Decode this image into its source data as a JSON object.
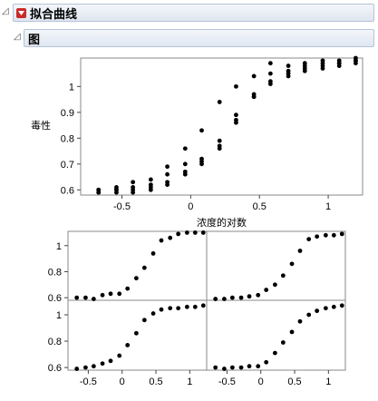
{
  "outline": {
    "title": "拟合曲线",
    "subtitle": "图"
  },
  "chart_data": [
    {
      "type": "scatter",
      "title": "",
      "xlabel": "浓度的对数",
      "ylabel": "毒性",
      "xlim": [
        -0.8,
        1.25
      ],
      "ylim": [
        0.58,
        1.11
      ],
      "grid": false,
      "xticks": [
        -0.5,
        0,
        0.5,
        1
      ],
      "yticks": [
        0.6,
        0.7,
        0.8,
        0.9,
        1
      ],
      "xtick_labels": [
        "-0.5",
        "0",
        "0.5",
        "1"
      ],
      "ytick_labels": [
        "0.6",
        "0.7",
        "0.8",
        "0.9",
        "1"
      ],
      "points": [
        [
          -0.67,
          0.6
        ],
        [
          -0.67,
          0.59
        ],
        [
          -0.67,
          0.6
        ],
        [
          -0.67,
          0.59
        ],
        [
          -0.54,
          0.6
        ],
        [
          -0.54,
          0.61
        ],
        [
          -0.54,
          0.59
        ],
        [
          -0.54,
          0.6
        ],
        [
          -0.42,
          0.63
        ],
        [
          -0.42,
          0.61
        ],
        [
          -0.42,
          0.6
        ],
        [
          -0.42,
          0.59
        ],
        [
          -0.29,
          0.64
        ],
        [
          -0.29,
          0.62
        ],
        [
          -0.29,
          0.61
        ],
        [
          -0.29,
          0.6
        ],
        [
          -0.17,
          0.69
        ],
        [
          -0.17,
          0.66
        ],
        [
          -0.17,
          0.63
        ],
        [
          -0.17,
          0.62
        ],
        [
          -0.04,
          0.76
        ],
        [
          -0.04,
          0.7
        ],
        [
          -0.04,
          0.67
        ],
        [
          -0.04,
          0.66
        ],
        [
          0.08,
          0.83
        ],
        [
          0.08,
          0.72
        ],
        [
          0.08,
          0.71
        ],
        [
          0.08,
          0.7
        ],
        [
          0.21,
          0.94
        ],
        [
          0.21,
          0.79
        ],
        [
          0.21,
          0.77
        ],
        [
          0.21,
          0.76
        ],
        [
          0.33,
          1.0
        ],
        [
          0.33,
          0.89
        ],
        [
          0.33,
          0.87
        ],
        [
          0.33,
          0.86
        ],
        [
          0.46,
          1.04
        ],
        [
          0.46,
          0.97
        ],
        [
          0.46,
          0.96
        ],
        [
          0.46,
          0.96
        ],
        [
          0.58,
          1.09
        ],
        [
          0.58,
          1.05
        ],
        [
          0.58,
          1.02
        ],
        [
          0.58,
          1.01
        ],
        [
          0.71,
          1.08
        ],
        [
          0.71,
          1.06
        ],
        [
          0.71,
          1.05
        ],
        [
          0.71,
          1.04
        ],
        [
          0.83,
          1.09
        ],
        [
          0.83,
          1.08
        ],
        [
          0.83,
          1.07
        ],
        [
          0.83,
          1.06
        ],
        [
          0.96,
          1.1
        ],
        [
          0.96,
          1.09
        ],
        [
          0.96,
          1.08
        ],
        [
          0.96,
          1.07
        ],
        [
          1.08,
          1.1
        ],
        [
          1.08,
          1.09
        ],
        [
          1.08,
          1.09
        ],
        [
          1.08,
          1.08
        ],
        [
          1.2,
          1.11
        ],
        [
          1.2,
          1.1
        ],
        [
          1.2,
          1.1
        ],
        [
          1.2,
          1.09
        ]
      ]
    },
    {
      "type": "scatter",
      "title": "",
      "xlabel": "",
      "ylabel": "",
      "layout": "2x2",
      "xlim": [
        -0.8,
        1.25
      ],
      "ylim": [
        0.58,
        1.11
      ],
      "xticks": [
        -0.5,
        0,
        0.5,
        1
      ],
      "yticks": [
        0.6,
        0.8,
        1
      ],
      "xtick_labels": [
        "-0.5",
        "0",
        "0.5",
        "1"
      ],
      "ytick_labels": [
        "0.6",
        "0.8",
        "1"
      ],
      "x": [
        -0.67,
        -0.54,
        -0.42,
        -0.29,
        -0.17,
        -0.04,
        0.08,
        0.21,
        0.33,
        0.46,
        0.58,
        0.71,
        0.83,
        0.96,
        1.08,
        1.2
      ],
      "panels": [
        {
          "row": 0,
          "col": 0,
          "y": [
            0.6,
            0.6,
            0.59,
            0.62,
            0.63,
            0.63,
            0.67,
            0.75,
            0.83,
            0.94,
            1.04,
            1.06,
            1.09,
            1.1,
            1.1,
            1.1
          ]
        },
        {
          "row": 0,
          "col": 1,
          "y": [
            0.59,
            0.59,
            0.6,
            0.6,
            0.61,
            0.62,
            0.66,
            0.7,
            0.77,
            0.86,
            0.96,
            1.05,
            1.07,
            1.08,
            1.08,
            1.09
          ]
        },
        {
          "row": 1,
          "col": 0,
          "y": [
            0.59,
            0.6,
            0.61,
            0.63,
            0.65,
            0.69,
            0.77,
            0.86,
            0.96,
            1.01,
            1.04,
            1.05,
            1.05,
            1.06,
            1.06,
            1.07
          ]
        },
        {
          "row": 1,
          "col": 1,
          "y": [
            0.6,
            0.59,
            0.6,
            0.6,
            0.61,
            0.61,
            0.64,
            0.71,
            0.79,
            0.87,
            0.95,
            1.0,
            1.03,
            1.05,
            1.06,
            1.07
          ]
        }
      ]
    }
  ]
}
